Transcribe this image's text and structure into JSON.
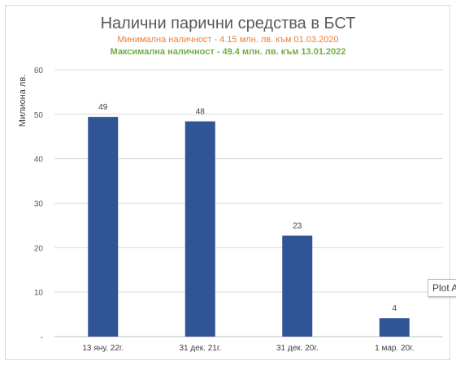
{
  "chart_data": {
    "type": "bar",
    "title": "Налични парични средства в БСТ",
    "subtitle_min": "Минимална наличност  - 4.15 млн. лв. към 01.03.2020",
    "subtitle_max": "Максимална наличност - 49.4 млн. лв. към 13.01.2022",
    "ylabel": "Милиона лв.",
    "xlabel": "",
    "categories": [
      "13 яну. 22г.",
      "31 дек. 21г.",
      "31 дек. 20г.",
      "1 мар. 20г."
    ],
    "values": [
      49.4,
      48.4,
      22.7,
      4.15
    ],
    "data_labels": [
      "49",
      "48",
      "23",
      "4"
    ],
    "ylim": [
      0,
      60
    ],
    "yticks": [
      "-",
      "10",
      "20",
      "30",
      "40",
      "50",
      "60"
    ],
    "grid": true,
    "bar_color": "#2f5597",
    "min_color": "#ed7d31",
    "max_color": "#70ad47"
  },
  "tooltip": {
    "text": "Plot Area"
  }
}
